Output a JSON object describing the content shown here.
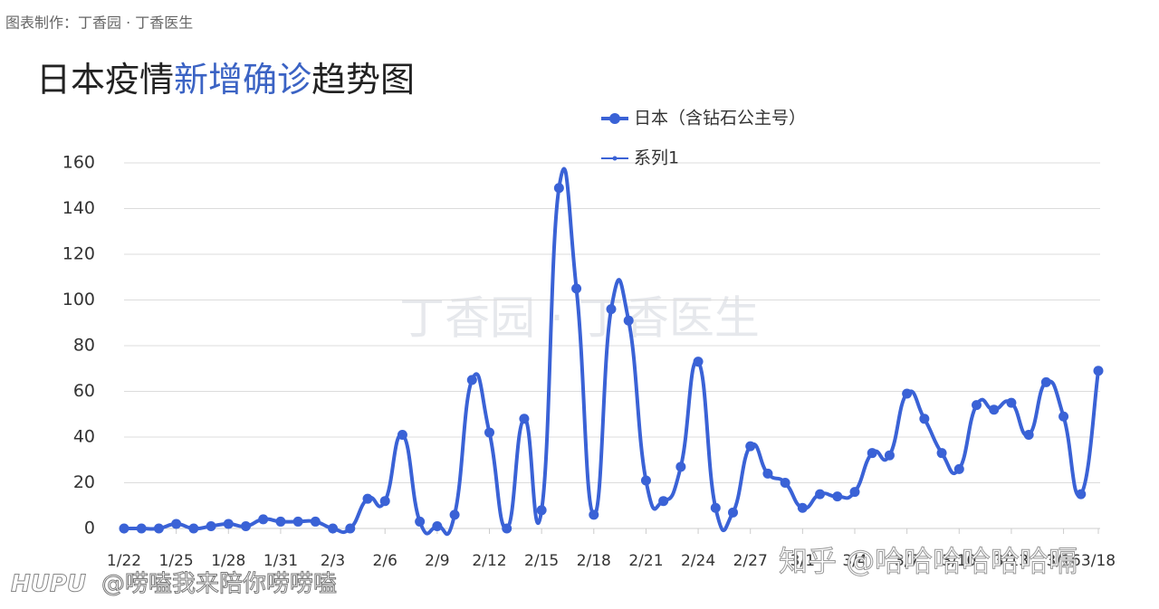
{
  "source": "图表制作：丁香园 · 丁香医生",
  "watermarks": [
    "丁香园 · 丁香医生",
    "知乎 @哈哈哈哈哈哈嗝",
    "HUPU",
    "@唠嗑我来陪你唠唠嗑"
  ],
  "chart_data": {
    "type": "line",
    "title_parts": [
      "日本疫情",
      "新增确诊",
      "趋势图"
    ],
    "title_colors": [
      "#222222",
      "#3b63c4",
      "#222222"
    ],
    "categories": [
      "1/22",
      null,
      null,
      "1/25",
      null,
      null,
      "1/28",
      null,
      null,
      "1/31",
      null,
      null,
      "2/3",
      null,
      null,
      "2/6",
      null,
      null,
      "2/9",
      null,
      null,
      "2/12",
      null,
      null,
      "2/15",
      null,
      null,
      "2/18",
      null,
      null,
      "2/21",
      null,
      null,
      "2/24",
      null,
      null,
      "2/27",
      null,
      null,
      "3/1",
      null,
      null,
      "3/4",
      null,
      null,
      "3/7",
      null,
      null,
      "3/10",
      null,
      null,
      "3/13",
      null,
      null,
      "3/16",
      null,
      "3/18"
    ],
    "series": [
      {
        "name": "日本（含钻石公主号）",
        "color": "#3a62d6",
        "values": [
          0,
          0,
          0,
          2,
          0,
          1,
          2,
          1,
          4,
          3,
          3,
          3,
          0,
          0,
          13,
          12,
          41,
          3,
          1,
          6,
          65,
          42,
          0,
          48,
          8,
          149,
          105,
          6,
          96,
          91,
          21,
          12,
          27,
          73,
          9,
          7,
          36,
          24,
          20,
          9,
          15,
          14,
          16,
          33,
          32,
          59,
          48,
          33,
          26,
          54,
          52,
          55,
          41,
          64,
          49,
          15,
          69
        ]
      },
      {
        "name": "系列1",
        "color": "#3a62d6",
        "values": [
          null,
          null,
          null,
          null,
          null,
          null,
          null,
          null,
          null,
          null,
          null,
          null,
          null,
          null,
          null,
          null,
          null,
          null,
          null,
          null,
          null,
          null,
          null,
          null,
          null,
          null,
          null,
          null,
          null,
          null,
          null,
          null,
          null,
          null,
          null,
          null,
          null,
          null,
          null,
          null,
          null,
          null,
          null,
          null,
          null,
          null,
          null,
          null,
          null,
          null,
          null,
          null,
          null,
          null,
          null,
          null,
          null
        ]
      }
    ],
    "ylim": [
      0,
      160
    ],
    "yticks": [
      0,
      20,
      40,
      60,
      80,
      100,
      120,
      140,
      160
    ],
    "grid": true
  }
}
